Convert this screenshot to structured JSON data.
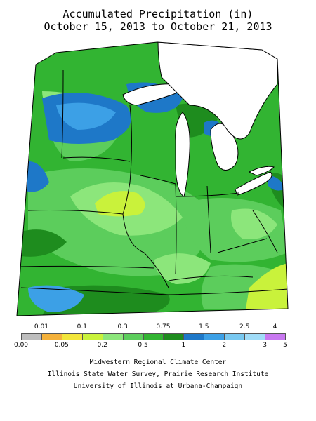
{
  "title_line1": "Accumulated Precipitation (in)",
  "title_line2": "October 15, 2013 to October 21, 2013",
  "legend": {
    "top_labels": [
      "0.01",
      "0.1",
      "0.3",
      "0.75",
      "1.5",
      "2.5",
      "4"
    ],
    "bottom_labels": [
      "0.00",
      "0.05",
      "0.2",
      "0.5",
      "1",
      "2",
      "3",
      "5"
    ],
    "colors": [
      "#bdbdbd",
      "#f4b13b",
      "#f2e63b",
      "#c9f23b",
      "#8ce67b",
      "#5ccd5c",
      "#32b432",
      "#1e8c1e",
      "#1e78c8",
      "#3ca0e6",
      "#78c8f0",
      "#a0dcf8",
      "#c878f0"
    ]
  },
  "credits": [
    "Midwestern Regional Climate Center",
    "Illinois State Water Survey, Prairie Research Institute",
    "University of Illinois at Urbana-Champaign"
  ]
}
